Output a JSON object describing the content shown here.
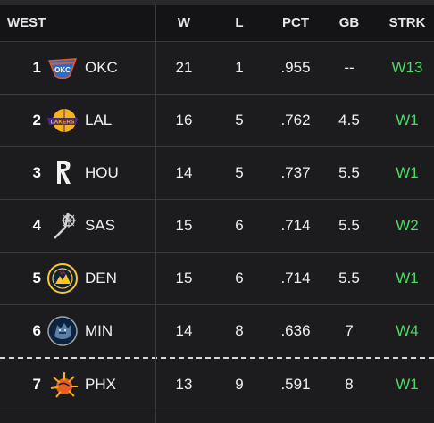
{
  "conference": "WEST",
  "columns": {
    "w": "W",
    "l": "L",
    "pct": "PCT",
    "gb": "GB",
    "strk": "STRK"
  },
  "colors": {
    "streak_win": "#4cd964",
    "background": "#1c1c1e",
    "header_bg": "#141416"
  },
  "teams": [
    {
      "rank": "1",
      "abbr": "OKC",
      "logo_icon": "okc-thunder-logo-icon",
      "w": "21",
      "l": "1",
      "pct": ".955",
      "gb": "--",
      "strk": "W13"
    },
    {
      "rank": "2",
      "abbr": "LAL",
      "logo_icon": "lakers-logo-icon",
      "w": "16",
      "l": "5",
      "pct": ".762",
      "gb": "4.5",
      "strk": "W1"
    },
    {
      "rank": "3",
      "abbr": "HOU",
      "logo_icon": "rockets-logo-icon",
      "w": "14",
      "l": "5",
      "pct": ".737",
      "gb": "5.5",
      "strk": "W1"
    },
    {
      "rank": "4",
      "abbr": "SAS",
      "logo_icon": "spurs-logo-icon",
      "w": "15",
      "l": "6",
      "pct": ".714",
      "gb": "5.5",
      "strk": "W2"
    },
    {
      "rank": "5",
      "abbr": "DEN",
      "logo_icon": "nuggets-logo-icon",
      "w": "15",
      "l": "6",
      "pct": ".714",
      "gb": "5.5",
      "strk": "W1"
    },
    {
      "rank": "6",
      "abbr": "MIN",
      "logo_icon": "timberwolves-logo-icon",
      "w": "14",
      "l": "8",
      "pct": ".636",
      "gb": "7",
      "strk": "W4"
    },
    {
      "rank": "7",
      "abbr": "PHX",
      "logo_icon": "suns-logo-icon",
      "w": "13",
      "l": "9",
      "pct": ".591",
      "gb": "8",
      "strk": "W1"
    }
  ]
}
